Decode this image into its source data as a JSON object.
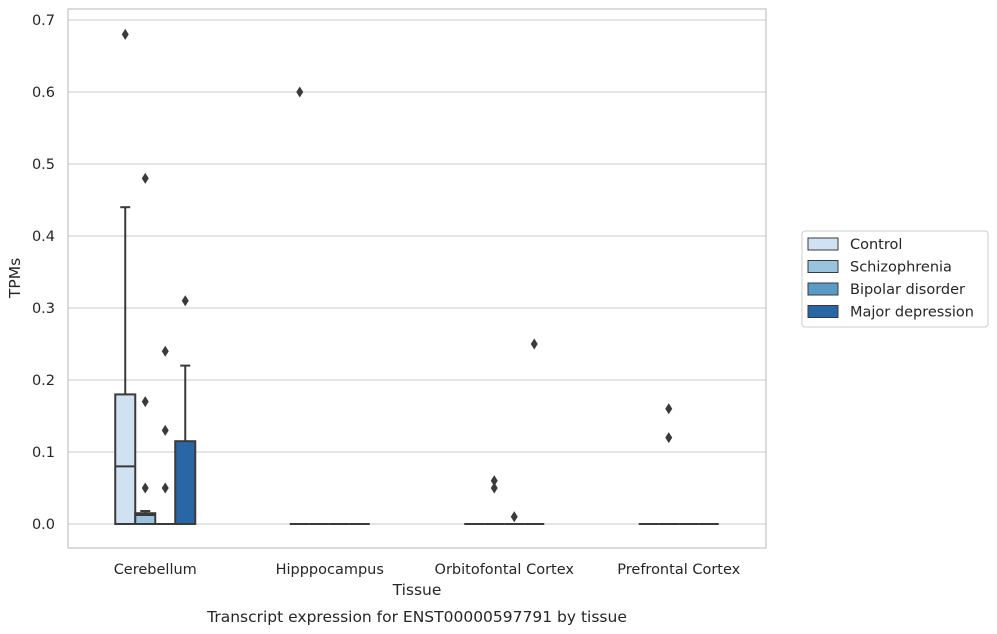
{
  "chart_data": {
    "type": "boxplot",
    "title": "Transcript expression for ENST00000597791 by tissue",
    "xlabel": "Tissue",
    "ylabel": "TPMs",
    "ylim": [
      -0.033,
      0.715
    ],
    "yticks": [
      0.0,
      0.1,
      0.2,
      0.3,
      0.4,
      0.5,
      0.6,
      0.7
    ],
    "ytick_labels": [
      "0.0",
      "0.1",
      "0.2",
      "0.3",
      "0.4",
      "0.5",
      "0.6",
      "0.7"
    ],
    "grid": true,
    "legend_position": "right",
    "categories": [
      "Cerebellum",
      "Hipppocampus",
      "Orbitofontal Cortex",
      "Prefrontal Cortex"
    ],
    "series": [
      {
        "name": "Control",
        "color": "#d0e2f2",
        "boxes": [
          {
            "q1": 0.0,
            "median": 0.08,
            "q3": 0.18,
            "whisker_low": 0.0,
            "whisker_high": 0.44,
            "outliers": [
              0.68
            ]
          },
          {
            "q1": 0.0,
            "median": 0.0,
            "q3": 0.0,
            "whisker_low": 0.0,
            "whisker_high": 0.0,
            "outliers": [
              0.6
            ]
          },
          {
            "q1": 0.0,
            "median": 0.0,
            "q3": 0.0,
            "whisker_low": 0.0,
            "whisker_high": 0.0,
            "outliers": []
          },
          {
            "q1": 0.0,
            "median": 0.0,
            "q3": 0.0,
            "whisker_low": 0.0,
            "whisker_high": 0.0,
            "outliers": []
          }
        ]
      },
      {
        "name": "Schizophrenia",
        "color": "#9ac3de",
        "boxes": [
          {
            "q1": 0.0,
            "median": 0.0125,
            "q3": 0.015,
            "whisker_low": 0.0,
            "whisker_high": 0.018,
            "outliers": [
              0.48,
              0.17,
              0.05
            ]
          },
          {
            "q1": 0.0,
            "median": 0.0,
            "q3": 0.0,
            "whisker_low": 0.0,
            "whisker_high": 0.0,
            "outliers": []
          },
          {
            "q1": 0.0,
            "median": 0.0,
            "q3": 0.0,
            "whisker_low": 0.0,
            "whisker_high": 0.0,
            "outliers": [
              0.06,
              0.05
            ]
          },
          {
            "q1": 0.0,
            "median": 0.0,
            "q3": 0.0,
            "whisker_low": 0.0,
            "whisker_high": 0.0,
            "outliers": [
              0.16,
              0.12
            ]
          }
        ]
      },
      {
        "name": "Bipolar disorder",
        "color": "#5a9ac6",
        "boxes": [
          {
            "q1": 0.0,
            "median": 0.0,
            "q3": 0.0,
            "whisker_low": 0.0,
            "whisker_high": 0.0,
            "outliers": [
              0.24,
              0.13,
              0.05
            ]
          },
          {
            "q1": 0.0,
            "median": 0.0,
            "q3": 0.0,
            "whisker_low": 0.0,
            "whisker_high": 0.0,
            "outliers": []
          },
          {
            "q1": 0.0,
            "median": 0.0,
            "q3": 0.0,
            "whisker_low": 0.0,
            "whisker_high": 0.0,
            "outliers": [
              0.01
            ]
          },
          {
            "q1": 0.0,
            "median": 0.0,
            "q3": 0.0,
            "whisker_low": 0.0,
            "whisker_high": 0.0,
            "outliers": []
          }
        ]
      },
      {
        "name": "Major depression",
        "color": "#2866a6",
        "boxes": [
          {
            "q1": 0.0,
            "median": 0.0,
            "q3": 0.115,
            "whisker_low": 0.0,
            "whisker_high": 0.22,
            "outliers": [
              0.31
            ]
          },
          {
            "q1": 0.0,
            "median": 0.0,
            "q3": 0.0,
            "whisker_low": 0.0,
            "whisker_high": 0.0,
            "outliers": []
          },
          {
            "q1": 0.0,
            "median": 0.0,
            "q3": 0.0,
            "whisker_low": 0.0,
            "whisker_high": 0.0,
            "outliers": [
              0.25
            ]
          },
          {
            "q1": 0.0,
            "median": 0.0,
            "q3": 0.0,
            "whisker_low": 0.0,
            "whisker_high": 0.0,
            "outliers": []
          }
        ]
      }
    ],
    "colors": {
      "grid": "#d5d5d5",
      "frame": "#c8c8c8",
      "box_edge": "#3a3a3a",
      "text": "#262626"
    }
  }
}
